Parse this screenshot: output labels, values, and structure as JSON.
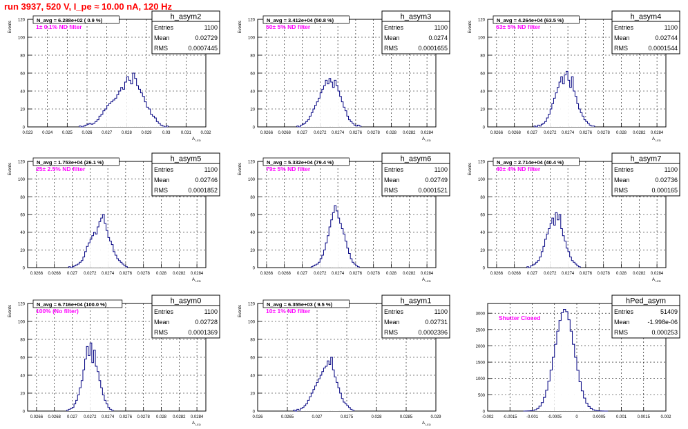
{
  "page_title": "run 3937,   520 V, I_pe ≈ 10.00 nA, 120 Hz",
  "chart_data": [
    {
      "type": "bar",
      "name": "h_asym2",
      "annotation": "N_avg = 6.288e+02 ( 0.9 %)",
      "filter_label": "1± 0.1% ND filter",
      "stats": [
        [
          "Entries",
          "1100"
        ],
        [
          "Mean",
          "0.02729"
        ],
        [
          "RMS",
          "0.0007445"
        ]
      ],
      "ylabel": "Events",
      "xlabel": "A_LED",
      "xlim": [
        0.023,
        0.032
      ],
      "ylim": [
        0,
        120
      ],
      "xticks": [
        "0.023",
        "0.024",
        "0.025",
        "0.026",
        "0.027",
        "0.028",
        "0.029",
        "0.03",
        "0.031",
        "0.032"
      ],
      "yticks": [
        "0",
        "20",
        "40",
        "60",
        "80",
        "100",
        "120"
      ],
      "ymajor": [
        0,
        20,
        40,
        60,
        80,
        100,
        120
      ],
      "xmajor": [
        0.023,
        0.024,
        0.025,
        0.026,
        0.027,
        0.028,
        0.029,
        0.03,
        0.031,
        0.032
      ],
      "xmin_data": 0.0256,
      "bin_width": 0.0001,
      "values": [
        1,
        0,
        1,
        2,
        3,
        4,
        3,
        4,
        6,
        8,
        12,
        14,
        18,
        20,
        24,
        26,
        28,
        30,
        32,
        36,
        40,
        44,
        42,
        50,
        56,
        52,
        48,
        60,
        54,
        46,
        42,
        38,
        34,
        28,
        22,
        20,
        14,
        12,
        10,
        6,
        4,
        2,
        1,
        0,
        1
      ]
    },
    {
      "type": "bar",
      "name": "h_asym3",
      "annotation": "N_avg = 3.412e+04 (50.8 %)",
      "filter_label": "50± 5% ND filter",
      "stats": [
        [
          "Entries",
          "1100"
        ],
        [
          "Mean",
          "0.0274"
        ],
        [
          "RMS",
          "0.0001655"
        ]
      ],
      "ylabel": "Events",
      "xlabel": "A_LED",
      "xlim": [
        0.0265,
        0.0285
      ],
      "ylim": [
        0,
        120
      ],
      "xticks": [
        "0.0266",
        "0.0268",
        "0.027",
        "0.0272",
        "0.0274",
        "0.0276",
        "0.0278",
        "0.028",
        "0.0282",
        "0.0284"
      ],
      "yticks": [
        "0",
        "20",
        "40",
        "60",
        "80",
        "100",
        "120"
      ],
      "ymajor": [
        0,
        20,
        40,
        60,
        80,
        100,
        120
      ],
      "xmajor": [
        0.0266,
        0.0268,
        0.027,
        0.0272,
        0.0274,
        0.0276,
        0.0278,
        0.028,
        0.0282,
        0.0284
      ],
      "xmin_data": 0.02694,
      "bin_width": 2e-05,
      "values": [
        1,
        0,
        2,
        3,
        4,
        6,
        8,
        12,
        16,
        20,
        24,
        28,
        32,
        38,
        42,
        46,
        52,
        48,
        54,
        50,
        44,
        52,
        46,
        40,
        34,
        28,
        22,
        18,
        12,
        8,
        6,
        4,
        2,
        1,
        2,
        1
      ]
    },
    {
      "type": "bar",
      "name": "h_asym4",
      "annotation": "N_avg = 4.264e+04 (63.5 %)",
      "filter_label": "63± 5% ND filter",
      "stats": [
        [
          "Entries",
          "1100"
        ],
        [
          "Mean",
          "0.02744"
        ],
        [
          "RMS",
          "0.0001544"
        ]
      ],
      "ylabel": "Events",
      "xlabel": "A_LED",
      "xlim": [
        0.0265,
        0.0285
      ],
      "ylim": [
        0,
        120
      ],
      "xticks": [
        "0.0266",
        "0.0268",
        "0.027",
        "0.0272",
        "0.0274",
        "0.0276",
        "0.0278",
        "0.028",
        "0.0282",
        "0.0284"
      ],
      "yticks": [
        "0",
        "20",
        "40",
        "60",
        "80",
        "100",
        "120"
      ],
      "ymajor": [
        0,
        20,
        40,
        60,
        80,
        100,
        120
      ],
      "xmin_data": 0.02702,
      "bin_width": 2e-05,
      "values": [
        1,
        0,
        2,
        1,
        3,
        4,
        6,
        10,
        14,
        20,
        26,
        32,
        38,
        44,
        50,
        56,
        48,
        58,
        62,
        52,
        44,
        56,
        40,
        34,
        26,
        20,
        16,
        12,
        8,
        6,
        4,
        2,
        1,
        1
      ]
    },
    {
      "type": "bar",
      "name": "h_asym5",
      "annotation": "N_avg = 1.753e+04 (26.1 %)",
      "filter_label": "25± 2.5% ND filter",
      "stats": [
        [
          "Entries",
          "1100"
        ],
        [
          "Mean",
          "0.02746"
        ],
        [
          "RMS",
          "0.0001852"
        ]
      ],
      "ylabel": "Events",
      "xlabel": "A_LED",
      "xlim": [
        0.0265,
        0.0285
      ],
      "ylim": [
        0,
        120
      ],
      "xticks": [
        "0.0266",
        "0.0268",
        "0.027",
        "0.0272",
        "0.0274",
        "0.0276",
        "0.0278",
        "0.028",
        "0.0282",
        "0.0284"
      ],
      "yticks": [
        "0",
        "20",
        "40",
        "60",
        "80",
        "100",
        "120"
      ],
      "ymajor": [
        0,
        20,
        40,
        60,
        80,
        100,
        120
      ],
      "xmin_data": 0.02696,
      "bin_width": 2e-05,
      "values": [
        1,
        0,
        1,
        2,
        3,
        4,
        6,
        8,
        12,
        18,
        24,
        28,
        32,
        36,
        40,
        38,
        46,
        52,
        56,
        60,
        50,
        42,
        34,
        30,
        26,
        18,
        14,
        10,
        8,
        6,
        4,
        2,
        1
      ]
    },
    {
      "type": "bar",
      "name": "h_asym6",
      "annotation": "N_avg = 5.332e+04 (79.4 %)",
      "filter_label": "79± 5% ND filter",
      "stats": [
        [
          "Entries",
          "1100"
        ],
        [
          "Mean",
          "0.02749"
        ],
        [
          "RMS",
          "0.0001521"
        ]
      ],
      "ylabel": "Events",
      "xlabel": "A_LED",
      "xlim": [
        0.0265,
        0.0285
      ],
      "ylim": [
        0,
        120
      ],
      "xticks": [
        "0.0266",
        "0.0268",
        "0.027",
        "0.0272",
        "0.0274",
        "0.0276",
        "0.0278",
        "0.028",
        "0.0282",
        "0.0284"
      ],
      "yticks": [
        "0",
        "20",
        "40",
        "60",
        "80",
        "100",
        "120"
      ],
      "ymajor": [
        0,
        20,
        40,
        60,
        80,
        100,
        120
      ],
      "xmin_data": 0.0271,
      "bin_width": 2e-05,
      "values": [
        1,
        2,
        3,
        4,
        6,
        10,
        14,
        20,
        28,
        36,
        46,
        54,
        62,
        70,
        64,
        56,
        50,
        44,
        38,
        30,
        22,
        16,
        10,
        6,
        4,
        2,
        1
      ]
    },
    {
      "type": "bar",
      "name": "h_asym7",
      "annotation": "N_avg = 2.714e+04 (40.4 %)",
      "filter_label": "40± 4% ND filter",
      "stats": [
        [
          "Entries",
          "1100"
        ],
        [
          "Mean",
          "0.02736"
        ],
        [
          "RMS",
          "0.000165"
        ]
      ],
      "ylabel": "Events",
      "xlabel": "A_LED",
      "xlim": [
        0.0265,
        0.0285
      ],
      "ylim": [
        0,
        120
      ],
      "xticks": [
        "0.0266",
        "0.0268",
        "0.027",
        "0.0272",
        "0.0274",
        "0.0276",
        "0.0278",
        "0.028",
        "0.0282",
        "0.0284"
      ],
      "yticks": [
        "0",
        "20",
        "40",
        "60",
        "80",
        "100",
        "120"
      ],
      "ymajor": [
        0,
        20,
        40,
        60,
        80,
        100,
        120
      ],
      "xmin_data": 0.02694,
      "bin_width": 2e-05,
      "values": [
        1,
        0,
        2,
        3,
        4,
        6,
        8,
        12,
        18,
        24,
        32,
        38,
        44,
        50,
        56,
        48,
        62,
        54,
        60,
        44,
        36,
        30,
        22,
        18,
        12,
        8,
        6,
        4,
        2,
        1
      ]
    },
    {
      "type": "bar",
      "name": "h_asym0",
      "annotation": "N_avg = 6.716e+04 (100.0 %)",
      "filter_label": "100% (No filter)",
      "stats": [
        [
          "Entries",
          "1100"
        ],
        [
          "Mean",
          "0.02728"
        ],
        [
          "RMS",
          "0.0001369"
        ]
      ],
      "ylabel": "Events",
      "xlabel": "A_LED",
      "xlim": [
        0.0265,
        0.0285
      ],
      "ylim": [
        0,
        120
      ],
      "xticks": [
        "0.0266",
        "0.0268",
        "0.027",
        "0.0272",
        "0.0274",
        "0.0276",
        "0.0278",
        "0.028",
        "0.0282",
        "0.0284"
      ],
      "yticks": [
        "0",
        "20",
        "40",
        "60",
        "80",
        "100",
        "120"
      ],
      "ymajor": [
        0,
        20,
        40,
        60,
        80,
        100,
        120
      ],
      "xmin_data": 0.02694,
      "bin_width": 2e-05,
      "values": [
        1,
        2,
        3,
        4,
        8,
        12,
        18,
        26,
        34,
        46,
        58,
        72,
        62,
        76,
        54,
        68,
        50,
        44,
        34,
        26,
        18,
        12,
        8,
        4,
        2,
        1
      ]
    },
    {
      "type": "bar",
      "name": "h_asym1",
      "annotation": "N_avg = 6.355e+03 ( 9.5 %)",
      "filter_label": "10± 1% ND filter",
      "stats": [
        [
          "Entries",
          "1100"
        ],
        [
          "Mean",
          "0.02731"
        ],
        [
          "RMS",
          "0.0002396"
        ]
      ],
      "ylabel": "Events",
      "xlabel": "A_LED",
      "xlim": [
        0.026,
        0.029
      ],
      "ylim": [
        0,
        120
      ],
      "xticks": [
        "0.026",
        "0.0265",
        "0.027",
        "0.0275",
        "0.028",
        "0.0285",
        "0.029"
      ],
      "yticks": [
        "0",
        "20",
        "40",
        "60",
        "80",
        "100",
        "120"
      ],
      "ymajor": [
        0,
        20,
        40,
        60,
        80,
        100,
        120
      ],
      "xmin_data": 0.0266,
      "bin_width": 3e-05,
      "values": [
        1,
        0,
        2,
        1,
        3,
        4,
        6,
        8,
        12,
        16,
        20,
        24,
        28,
        32,
        36,
        40,
        44,
        48,
        50,
        56,
        52,
        60,
        46,
        38,
        32,
        26,
        20,
        14,
        10,
        8,
        6,
        4,
        2,
        1
      ]
    },
    {
      "type": "bar",
      "name": "hPed_asym",
      "annotation": "",
      "filter_label": "Shutter Closed",
      "stats": [
        [
          "Entries",
          "51409"
        ],
        [
          "Mean",
          "-1.998e-06"
        ],
        [
          "RMS",
          "0.000253"
        ]
      ],
      "ylabel": "",
      "xlabel": "",
      "xlim": [
        -0.002,
        0.002
      ],
      "ylim": [
        0,
        3300
      ],
      "xticks": [
        "-0.002",
        "-0.0015",
        "-0.001",
        "-0.0005",
        "0",
        "0.0005",
        "0.001",
        "0.0015",
        "0.002"
      ],
      "yticks": [
        "0",
        "500",
        "1000",
        "1500",
        "2000",
        "2500",
        "3000"
      ],
      "ymajor": [
        0,
        500,
        1000,
        1500,
        2000,
        2500,
        3000
      ],
      "xmin_data": -0.0012,
      "bin_width": 5e-05,
      "values": [
        0,
        2,
        5,
        10,
        20,
        40,
        80,
        150,
        260,
        420,
        640,
        920,
        1260,
        1650,
        2050,
        2450,
        2780,
        3020,
        3120,
        3050,
        2800,
        2450,
        2050,
        1650,
        1250,
        900,
        620,
        400,
        240,
        140,
        76,
        38,
        18,
        8,
        4,
        2,
        1,
        0
      ]
    }
  ]
}
